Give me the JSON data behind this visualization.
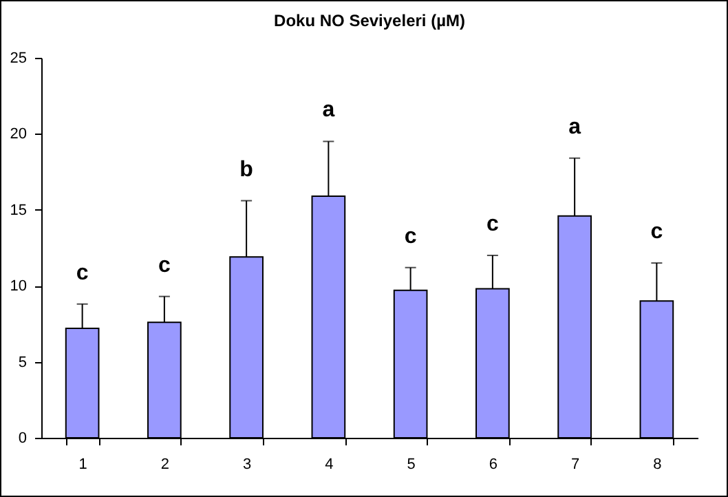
{
  "chart_data": {
    "type": "bar",
    "title": "Doku NO Seviyeleri (µM)",
    "categories": [
      "1",
      "2",
      "3",
      "4",
      "5",
      "6",
      "7",
      "8"
    ],
    "values": [
      7.2,
      7.6,
      11.9,
      15.9,
      9.7,
      9.8,
      14.6,
      9.0
    ],
    "errors": [
      [
        7.2,
        8.8
      ],
      [
        7.6,
        9.3
      ],
      [
        11.9,
        15.6
      ],
      [
        15.9,
        19.5
      ],
      [
        9.7,
        11.2
      ],
      [
        9.8,
        12.0
      ],
      [
        14.6,
        18.4
      ],
      [
        9.0,
        11.5
      ]
    ],
    "color": "#9999ff",
    "ylim": [
      0,
      25
    ],
    "yticks": [
      0,
      5,
      10,
      15,
      20,
      25
    ],
    "grid": false,
    "annotations": [
      {
        "text": "c",
        "x": "1",
        "y": 8.8
      },
      {
        "text": "c",
        "x": "2",
        "y": 9.3
      },
      {
        "text": "b",
        "x": "3",
        "y": 15.6
      },
      {
        "text": "a",
        "x": "4",
        "y": 19.5
      },
      {
        "text": "c",
        "x": "5",
        "y": 11.2
      },
      {
        "text": "c",
        "x": "6",
        "y": 12.0
      },
      {
        "text": "a",
        "x": "7",
        "y": 18.4
      },
      {
        "text": "c",
        "x": "8",
        "y": 11.5
      }
    ]
  }
}
